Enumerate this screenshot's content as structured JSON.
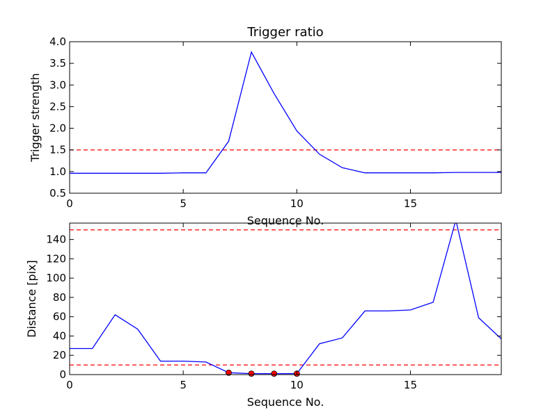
{
  "chart_data": [
    {
      "type": "line",
      "title": "Trigger ratio",
      "xlabel": "Sequence No.",
      "ylabel": "Trigger strength",
      "xlim": [
        0,
        19
      ],
      "ylim": [
        0.5,
        4.0
      ],
      "xticks": [
        0,
        5,
        10,
        15
      ],
      "xtick_labels": [
        "0",
        "5",
        "10",
        "15"
      ],
      "yticks": [
        0.5,
        1.0,
        1.5,
        2.0,
        2.5,
        3.0,
        3.5,
        4.0
      ],
      "ytick_labels": [
        "0.5",
        "1.0",
        "1.5",
        "2.0",
        "2.5",
        "3.0",
        "3.5",
        "4.0"
      ],
      "grid": false,
      "series": [
        {
          "color": "#0000ff",
          "style": "solid",
          "x": [
            0,
            1,
            2,
            3,
            4,
            5,
            6,
            7,
            8,
            9,
            10,
            11,
            12,
            13,
            14,
            15,
            16,
            17,
            18,
            19
          ],
          "values": [
            0.96,
            0.96,
            0.96,
            0.96,
            0.96,
            0.97,
            0.97,
            1.7,
            3.76,
            2.8,
            1.94,
            1.4,
            1.09,
            0.97,
            0.97,
            0.97,
            0.97,
            0.98,
            0.98,
            0.98
          ]
        }
      ],
      "hlines": [
        {
          "y": 1.5,
          "color": "#ff0000",
          "style": "dashed"
        }
      ]
    },
    {
      "type": "line",
      "title": "",
      "xlabel": "Sequence No.",
      "ylabel": "Distance [pix]",
      "xlim": [
        0,
        19
      ],
      "ylim": [
        0,
        157
      ],
      "xticks": [
        0,
        5,
        10,
        15
      ],
      "xtick_labels": [
        "0",
        "5",
        "10",
        "15"
      ],
      "yticks": [
        0,
        20,
        40,
        60,
        80,
        100,
        120,
        140
      ],
      "ytick_labels": [
        "0",
        "20",
        "40",
        "60",
        "80",
        "100",
        "120",
        "140"
      ],
      "grid": false,
      "series": [
        {
          "color": "#0000ff",
          "style": "solid",
          "x": [
            0,
            1,
            2,
            3,
            4,
            5,
            6,
            7,
            8,
            9,
            10,
            11,
            12,
            13,
            14,
            15,
            16,
            17,
            18,
            19
          ],
          "values": [
            27,
            27,
            62,
            47,
            14,
            14,
            13,
            2,
            1,
            1,
            1,
            32,
            38,
            66,
            66,
            67,
            75,
            160,
            59,
            37
          ]
        }
      ],
      "markers": [
        {
          "color": "#ff0000",
          "x": [
            7,
            8,
            9,
            10
          ],
          "values": [
            2,
            1,
            1,
            1
          ]
        }
      ],
      "hlines": [
        {
          "y": 150,
          "color": "#ff0000",
          "style": "dashed"
        },
        {
          "y": 10,
          "color": "#ff0000",
          "style": "dashed"
        }
      ]
    }
  ]
}
